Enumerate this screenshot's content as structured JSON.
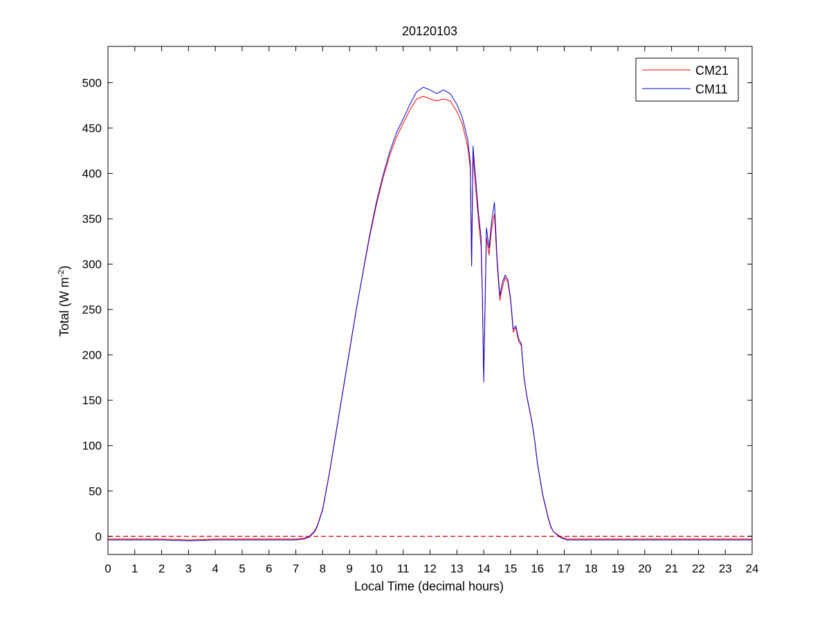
{
  "chart_data": {
    "type": "line",
    "title": "20120103",
    "xlabel": "Local Time (decimal hours)",
    "ylabel": {
      "main": "Total (W m",
      "superscript": "-2",
      "close": ")"
    },
    "xlim": [
      0,
      24
    ],
    "ylim": [
      -20,
      540
    ],
    "xticks": [
      0,
      1,
      2,
      3,
      4,
      5,
      6,
      7,
      8,
      9,
      10,
      11,
      12,
      13,
      14,
      15,
      16,
      17,
      18,
      19,
      20,
      21,
      22,
      23,
      24
    ],
    "yticks": [
      0,
      50,
      100,
      150,
      200,
      250,
      300,
      350,
      400,
      450,
      500
    ],
    "grid": false,
    "legend_position": "top-right",
    "reference_line": {
      "y": 0,
      "style": "dashed",
      "color": "#cc0000"
    },
    "series": [
      {
        "name": "CM21",
        "color": "#ff0000",
        "x": [
          0,
          1,
          2,
          3,
          4,
          5,
          6,
          7,
          7.3,
          7.5,
          7.6,
          7.7,
          7.8,
          8,
          8.25,
          8.5,
          8.75,
          9,
          9.25,
          9.5,
          9.75,
          10,
          10.25,
          10.5,
          10.75,
          11,
          11.25,
          11.5,
          11.75,
          12,
          12.25,
          12.5,
          12.75,
          13,
          13.2,
          13.4,
          13.5,
          13.55,
          13.6,
          13.7,
          13.8,
          13.9,
          13.95,
          14,
          14.1,
          14.2,
          14.3,
          14.4,
          14.5,
          14.6,
          14.7,
          14.8,
          14.9,
          15,
          15.1,
          15.2,
          15.3,
          15.4,
          15.5,
          15.6,
          15.7,
          15.8,
          15.9,
          16,
          16.2,
          16.4,
          16.5,
          16.6,
          16.8,
          16.9,
          17,
          17.1,
          17.2,
          17.3,
          17.5,
          18,
          19,
          20,
          21,
          22,
          23,
          24
        ],
        "y": [
          -3,
          -3,
          -3,
          -4,
          -3,
          -3,
          -3,
          -3,
          -2,
          0,
          3,
          6,
          12,
          30,
          70,
          115,
          160,
          205,
          250,
          290,
          330,
          365,
          395,
          420,
          440,
          455,
          470,
          482,
          485,
          482,
          480,
          482,
          480,
          468,
          455,
          430,
          405,
          300,
          420,
          385,
          350,
          320,
          265,
          175,
          330,
          310,
          340,
          355,
          300,
          260,
          275,
          285,
          280,
          260,
          225,
          230,
          215,
          210,
          175,
          155,
          140,
          125,
          105,
          80,
          45,
          20,
          10,
          5,
          1,
          -1,
          -2,
          -3,
          -3,
          -3,
          -3,
          -3,
          -3,
          -3,
          -3,
          -3,
          -3,
          -3
        ]
      },
      {
        "name": "CM11",
        "color": "#0000cc",
        "x": [
          0,
          1,
          2,
          3,
          4,
          5,
          6,
          7,
          7.3,
          7.5,
          7.6,
          7.7,
          7.8,
          8,
          8.25,
          8.5,
          8.75,
          9,
          9.25,
          9.5,
          9.75,
          10,
          10.25,
          10.5,
          10.75,
          11,
          11.25,
          11.5,
          11.75,
          12,
          12.25,
          12.5,
          12.75,
          13,
          13.2,
          13.4,
          13.5,
          13.55,
          13.6,
          13.7,
          13.8,
          13.9,
          13.95,
          14,
          14.1,
          14.2,
          14.3,
          14.4,
          14.5,
          14.6,
          14.7,
          14.8,
          14.9,
          15,
          15.1,
          15.2,
          15.3,
          15.4,
          15.5,
          15.6,
          15.7,
          15.8,
          15.9,
          16,
          16.2,
          16.4,
          16.5,
          16.6,
          16.8,
          16.9,
          17,
          17.1,
          17.2,
          17.3,
          17.5,
          18,
          19,
          20,
          21,
          22,
          23,
          24
        ],
        "y": [
          -4,
          -4,
          -4,
          -5,
          -4,
          -4,
          -4,
          -4,
          -3,
          -1,
          2,
          5,
          11,
          29,
          69,
          114,
          159,
          204,
          249,
          291,
          332,
          368,
          398,
          424,
          445,
          460,
          476,
          490,
          495,
          492,
          488,
          492,
          488,
          476,
          462,
          438,
          412,
          298,
          430,
          395,
          358,
          330,
          270,
          170,
          340,
          318,
          348,
          368,
          305,
          265,
          280,
          288,
          283,
          262,
          228,
          232,
          218,
          212,
          176,
          156,
          141,
          126,
          106,
          81,
          46,
          21,
          11,
          5,
          0,
          -2,
          -3,
          -4,
          -4,
          -4,
          -4,
          -4,
          -4,
          -4,
          -4,
          -4,
          -4,
          -4
        ]
      }
    ]
  }
}
